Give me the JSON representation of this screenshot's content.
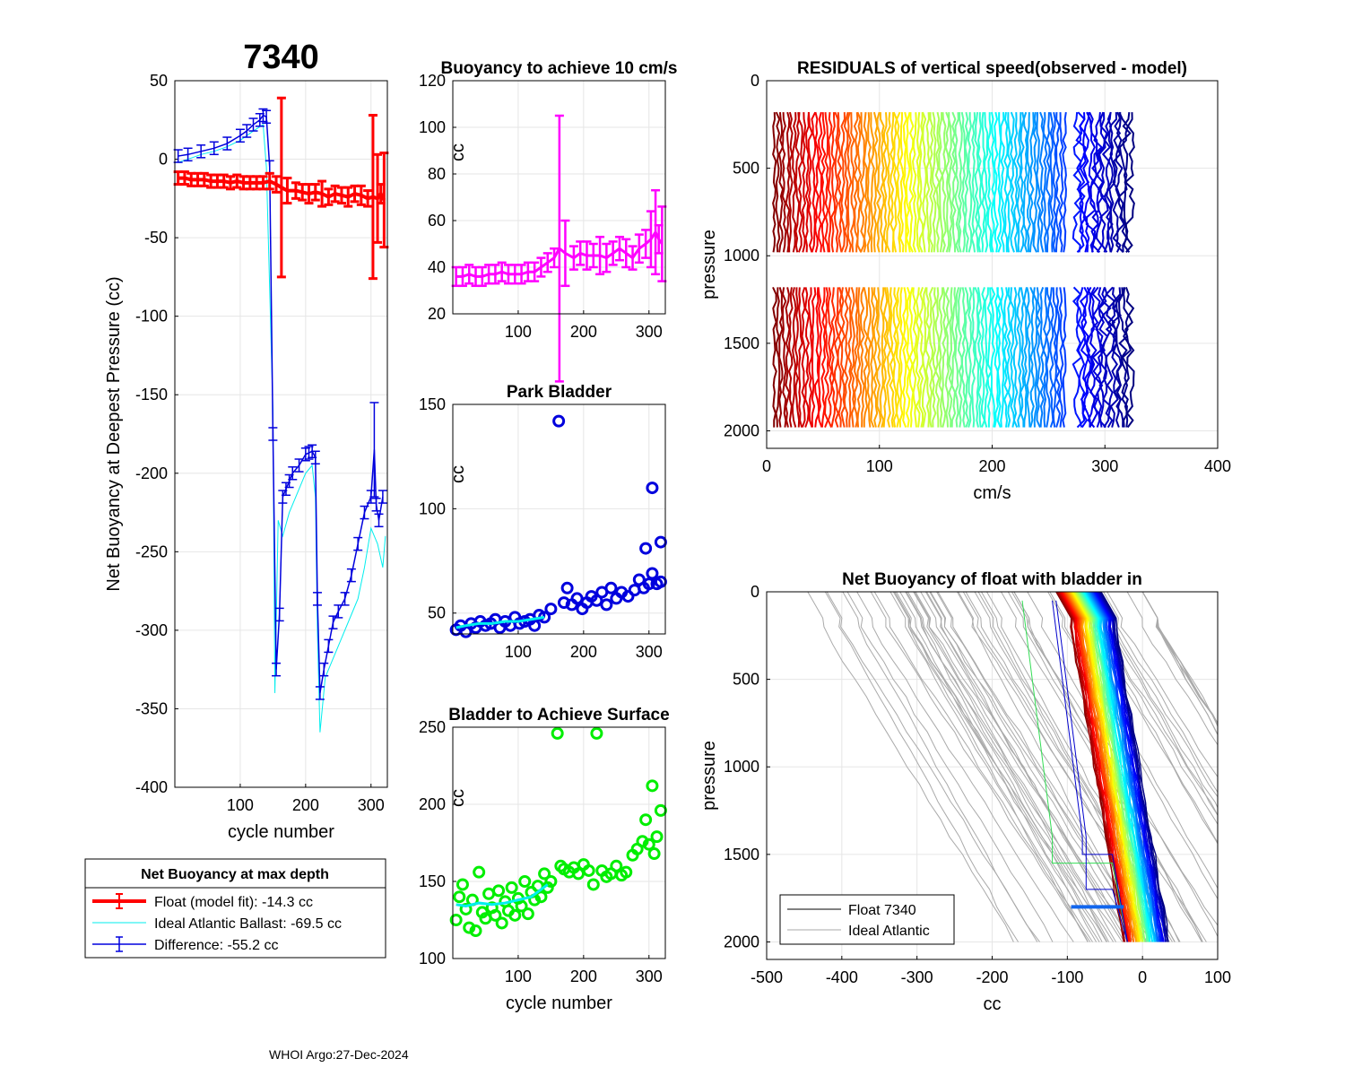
{
  "figure": {
    "main_title": "7340",
    "footer": "WHOI Argo:27-Dec-2024"
  },
  "colors": {
    "float": "#ff0000",
    "ideal": "#00eeee",
    "difference": "#0000dd",
    "buoy10": "#ff00ff",
    "park": "#0000dd",
    "park_line": "#00eeee",
    "surface": "#00ee00",
    "surface_line": "#00eeee",
    "grid": "#e6e6e6",
    "profile_gray": "#aaaaaa"
  },
  "chart_data": [
    {
      "id": "net_buoyancy_deepest",
      "type": "line",
      "title": "7340",
      "xlabel": "cycle number",
      "ylabel": "Net Buoyancy at Deepest Pressure (cc)",
      "xlim": [
        0,
        325
      ],
      "ylim": [
        -400,
        50
      ],
      "xticks": [
        100,
        200,
        300
      ],
      "yticks": [
        50,
        0,
        -50,
        -100,
        -150,
        -200,
        -250,
        -300,
        -350,
        -400
      ],
      "series": [
        {
          "name": "Float (model fit)",
          "color": "#ff0000",
          "x": [
            5,
            15,
            25,
            35,
            45,
            55,
            65,
            75,
            85,
            95,
            105,
            115,
            125,
            135,
            145,
            155,
            163,
            172,
            185,
            195,
            205,
            215,
            225,
            235,
            245,
            255,
            265,
            275,
            285,
            295,
            303,
            310,
            315,
            320
          ],
          "y": [
            -12,
            -12,
            -13,
            -13,
            -13,
            -14,
            -14,
            -14,
            -15,
            -14,
            -15,
            -15,
            -15,
            -15,
            -14,
            -16,
            -18,
            -20,
            -20,
            -21,
            -22,
            -21,
            -22,
            -24,
            -22,
            -23,
            -24,
            -22,
            -23,
            -25,
            -24,
            -25,
            -22,
            -26
          ],
          "err": [
            4,
            4,
            4,
            4,
            4,
            4,
            4,
            4,
            4,
            4,
            4,
            4,
            4,
            4,
            5,
            5,
            57,
            8,
            5,
            5,
            6,
            5,
            8,
            5,
            5,
            5,
            6,
            5,
            6,
            5,
            52,
            28,
            6,
            30
          ]
        },
        {
          "name": "Ideal Atlantic Ballast",
          "color": "#00eeee",
          "x": [
            5,
            20,
            40,
            60,
            80,
            100,
            120,
            135,
            140,
            150,
            153,
            158,
            165,
            175,
            185,
            200,
            210,
            215,
            218,
            222,
            230,
            240,
            250,
            260,
            270,
            280,
            290,
            300,
            305,
            310,
            318,
            322
          ],
          "y": [
            -2,
            0,
            3,
            5,
            8,
            12,
            18,
            22,
            -5,
            -160,
            -340,
            -230,
            -240,
            -225,
            -215,
            -200,
            -195,
            -215,
            -300,
            -365,
            -330,
            -320,
            -310,
            -300,
            -290,
            -280,
            -260,
            -235,
            -240,
            -245,
            -260,
            -240
          ]
        },
        {
          "name": "Difference",
          "color": "#0000dd",
          "x": [
            5,
            20,
            40,
            60,
            80,
            100,
            110,
            120,
            130,
            135,
            140,
            145,
            150,
            155,
            160,
            165,
            170,
            175,
            180,
            190,
            200,
            205,
            210,
            215,
            218,
            222,
            228,
            235,
            242,
            250,
            260,
            270,
            280,
            290,
            300,
            305,
            308,
            312,
            318
          ],
          "y": [
            2,
            3,
            5,
            7,
            10,
            15,
            18,
            22,
            25,
            28,
            27,
            -5,
            -175,
            -325,
            -290,
            -215,
            -210,
            -205,
            -200,
            -195,
            -188,
            -187,
            -186,
            -190,
            -280,
            -340,
            -325,
            -310,
            -295,
            -288,
            -280,
            -265,
            -245,
            -225,
            -215,
            -185,
            -220,
            -230,
            -215
          ],
          "err": [
            4,
            4,
            4,
            4,
            4,
            4,
            4,
            4,
            4,
            4,
            4,
            4,
            4,
            4,
            4,
            4,
            4,
            4,
            4,
            4,
            4,
            4,
            4,
            4,
            4,
            4,
            4,
            4,
            4,
            4,
            4,
            4,
            4,
            4,
            4,
            30,
            4,
            4,
            4
          ]
        }
      ],
      "legend": {
        "title": "Net Buoyancy at max depth",
        "entries": [
          "Float (model fit): -14.3 cc",
          "Ideal Atlantic Ballast: -69.5 cc",
          "Difference: -55.2 cc"
        ]
      }
    },
    {
      "id": "buoyancy_10cms",
      "type": "line",
      "title": "Buoyancy to achieve 10 cm/s",
      "xlabel": "",
      "ylabel": "cc",
      "xlim": [
        0,
        325
      ],
      "ylim": [
        20,
        120
      ],
      "xticks": [
        100,
        200,
        300
      ],
      "yticks": [
        20,
        40,
        60,
        80,
        100,
        120
      ],
      "series": [
        {
          "name": "buoyancy",
          "color": "#ff00ff",
          "x": [
            5,
            15,
            25,
            35,
            45,
            55,
            65,
            75,
            85,
            95,
            105,
            115,
            125,
            135,
            145,
            155,
            163,
            172,
            185,
            195,
            205,
            215,
            225,
            235,
            245,
            255,
            265,
            275,
            285,
            295,
            303,
            310,
            315,
            320
          ],
          "y": [
            36,
            36,
            37,
            36,
            36,
            37,
            37,
            38,
            37,
            37,
            37,
            38,
            38,
            40,
            42,
            44,
            48,
            46,
            44,
            46,
            45,
            45,
            45,
            44,
            46,
            48,
            46,
            44,
            48,
            50,
            52,
            55,
            52,
            50
          ],
          "err": [
            4,
            4,
            4,
            4,
            4,
            4,
            4,
            4,
            4,
            4,
            4,
            4,
            4,
            4,
            4,
            4,
            57,
            14,
            5,
            5,
            6,
            5,
            8,
            6,
            5,
            5,
            6,
            5,
            6,
            6,
            12,
            18,
            6,
            16
          ]
        }
      ]
    },
    {
      "id": "park_bladder",
      "type": "scatter",
      "title": "Park Bladder",
      "xlabel": "",
      "ylabel": "cc",
      "xlim": [
        0,
        325
      ],
      "ylim": [
        40,
        150
      ],
      "xticks": [
        100,
        200,
        300
      ],
      "yticks": [
        50,
        100,
        150
      ],
      "series": [
        {
          "name": "park",
          "color": "#0000dd",
          "x": [
            5,
            12,
            20,
            28,
            35,
            42,
            50,
            58,
            65,
            72,
            80,
            88,
            95,
            102,
            110,
            118,
            125,
            132,
            140,
            150,
            162,
            170,
            175,
            182,
            190,
            198,
            205,
            212,
            220,
            228,
            235,
            242,
            250,
            258,
            268,
            278,
            285,
            292,
            300,
            305,
            312,
            318,
            295,
            305,
            318
          ],
          "y": [
            42,
            44,
            41,
            45,
            43,
            46,
            44,
            45,
            47,
            43,
            46,
            44,
            48,
            45,
            46,
            47,
            44,
            49,
            48,
            52,
            142,
            55,
            62,
            54,
            57,
            52,
            55,
            58,
            56,
            60,
            54,
            62,
            57,
            60,
            58,
            61,
            66,
            62,
            64,
            69,
            64,
            65,
            81,
            110,
            84
          ]
        },
        {
          "name": "park smoothed",
          "color": "#00eeee",
          "x": [
            5,
            20,
            40,
            60,
            80,
            100,
            120,
            140
          ],
          "y": [
            43,
            44,
            45,
            45,
            46,
            46,
            47,
            48
          ]
        }
      ]
    },
    {
      "id": "bladder_surface",
      "type": "scatter",
      "title": "Bladder to Achieve Surface",
      "xlabel": "cycle number",
      "ylabel": "cc",
      "xlim": [
        0,
        325
      ],
      "ylim": [
        100,
        250
      ],
      "xticks": [
        100,
        200,
        300
      ],
      "yticks": [
        100,
        150,
        200,
        250
      ],
      "series": [
        {
          "name": "surface",
          "color": "#00ee00",
          "x": [
            5,
            10,
            15,
            20,
            25,
            30,
            35,
            40,
            45,
            50,
            55,
            60,
            65,
            70,
            75,
            80,
            85,
            90,
            95,
            100,
            105,
            110,
            115,
            120,
            125,
            130,
            135,
            140,
            145,
            150,
            160,
            165,
            170,
            178,
            185,
            192,
            200,
            208,
            215,
            220,
            228,
            235,
            242,
            250,
            258,
            265,
            275,
            282,
            290,
            295,
            300,
            305,
            308,
            312,
            318
          ],
          "y": [
            125,
            140,
            148,
            132,
            120,
            138,
            118,
            156,
            130,
            126,
            142,
            133,
            128,
            144,
            123,
            137,
            131,
            146,
            128,
            139,
            134,
            150,
            129,
            143,
            138,
            147,
            140,
            155,
            146,
            150,
            246,
            160,
            158,
            156,
            159,
            155,
            161,
            157,
            148,
            246,
            157,
            153,
            155,
            160,
            154,
            156,
            167,
            171,
            176,
            190,
            174,
            212,
            168,
            179,
            196
          ]
        },
        {
          "name": "surface smoothed",
          "color": "#00eeee",
          "x": [
            5,
            20,
            40,
            60,
            80,
            100,
            120,
            145
          ],
          "y": [
            135,
            134,
            136,
            135,
            136,
            138,
            140,
            148
          ]
        }
      ]
    },
    {
      "id": "residuals",
      "type": "line",
      "title": "RESIDUALS of vertical speed(observed - model)",
      "xlabel": "cm/s",
      "ylabel": "pressure",
      "xlim": [
        0,
        400
      ],
      "ylim": [
        2100,
        0
      ],
      "xticks": [
        0,
        100,
        200,
        300,
        400
      ],
      "yticks": [
        0,
        500,
        1000,
        1500,
        2000
      ],
      "profile_segments": [
        [
          180,
          1000
        ],
        [
          1180,
          1980
        ]
      ],
      "profiles_x_start": 7,
      "profiles_x_end": 322,
      "profile_count": 110
    },
    {
      "id": "net_buoyancy_profiles",
      "type": "line",
      "title": "Net Buoyancy of float with bladder in",
      "xlabel": "cc",
      "ylabel": "pressure",
      "xlim": [
        -500,
        100
      ],
      "ylim": [
        2100,
        0
      ],
      "xticks": [
        -500,
        -400,
        -300,
        -200,
        -100,
        0,
        100
      ],
      "yticks": [
        0,
        500,
        1000,
        1500,
        2000
      ],
      "legend": {
        "entries": [
          "Float 7340",
          "Ideal Atlantic"
        ]
      }
    }
  ]
}
